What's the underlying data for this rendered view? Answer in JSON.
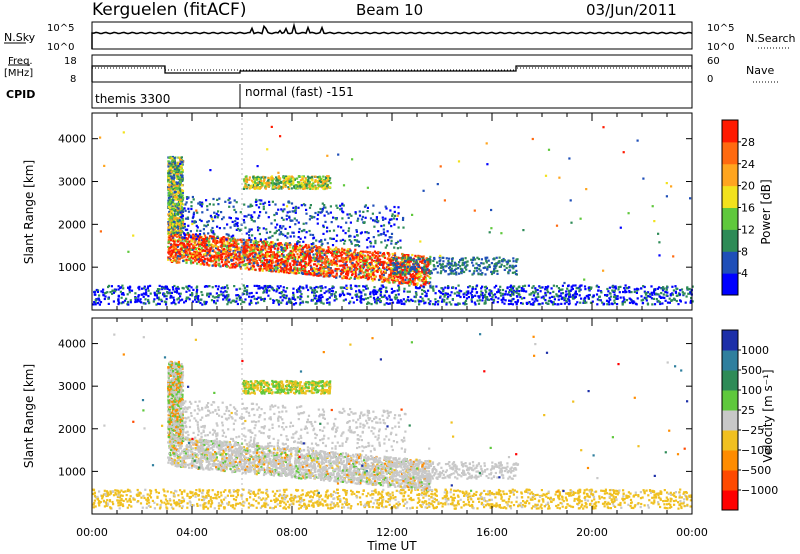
{
  "header": {
    "station": "Kerguelen (fitACF)",
    "beam": "Beam 10",
    "date": "03/Jun/2011"
  },
  "panels": {
    "nsky": {
      "label": "N.Sky",
      "tick_top": "10^5",
      "tick_bottom": "10^0",
      "right_tick_top": "10^5",
      "right_tick_bottom": "10^0",
      "right_label": "N.Search"
    },
    "freq": {
      "label_line1": "Freq.",
      "label_line2": "[MHz]",
      "tick_top": "18",
      "tick_bottom": "8",
      "right_tick_top": "60",
      "right_tick_bottom": "0",
      "right_label": "Nave"
    },
    "cpid": {
      "label": "CPID",
      "mode1": "themis 3300",
      "mode2": "normal (fast) -151"
    }
  },
  "chart_data": [
    {
      "type": "heatmap",
      "name": "power",
      "ylabel": "Slant Range [km]",
      "yticks": [
        "1000",
        "2000",
        "3000",
        "4000"
      ],
      "colorbar": {
        "label": "Power [dB]",
        "ticks": [
          "4",
          "8",
          "12",
          "16",
          "20",
          "24",
          "28"
        ],
        "colors": [
          "#0000ff",
          "#1f4fb8",
          "#2e8b57",
          "#5fc83c",
          "#f2e21c",
          "#ffa51f",
          "#ff6a10",
          "#ff1a00"
        ]
      }
    },
    {
      "type": "heatmap",
      "name": "velocity",
      "ylabel": "Slant Range [km]",
      "yticks": [
        "1000",
        "2000",
        "3000",
        "4000"
      ],
      "colorbar": {
        "label": "Velocity [m s⁻¹]",
        "ticks": [
          "1000",
          "500",
          "100",
          "25",
          "−25",
          "−100",
          "−500",
          "−1000"
        ],
        "colors": [
          "#1c2fa8",
          "#2f7f9e",
          "#2e8b57",
          "#5fc83c",
          "#c8c8c8",
          "#f0c020",
          "#ff8c00",
          "#ff4a00",
          "#ff0000"
        ]
      }
    }
  ],
  "x_axis": {
    "label": "Time UT",
    "ticks": [
      "00:00",
      "04:00",
      "08:00",
      "12:00",
      "16:00",
      "20:00",
      "00:00"
    ]
  }
}
